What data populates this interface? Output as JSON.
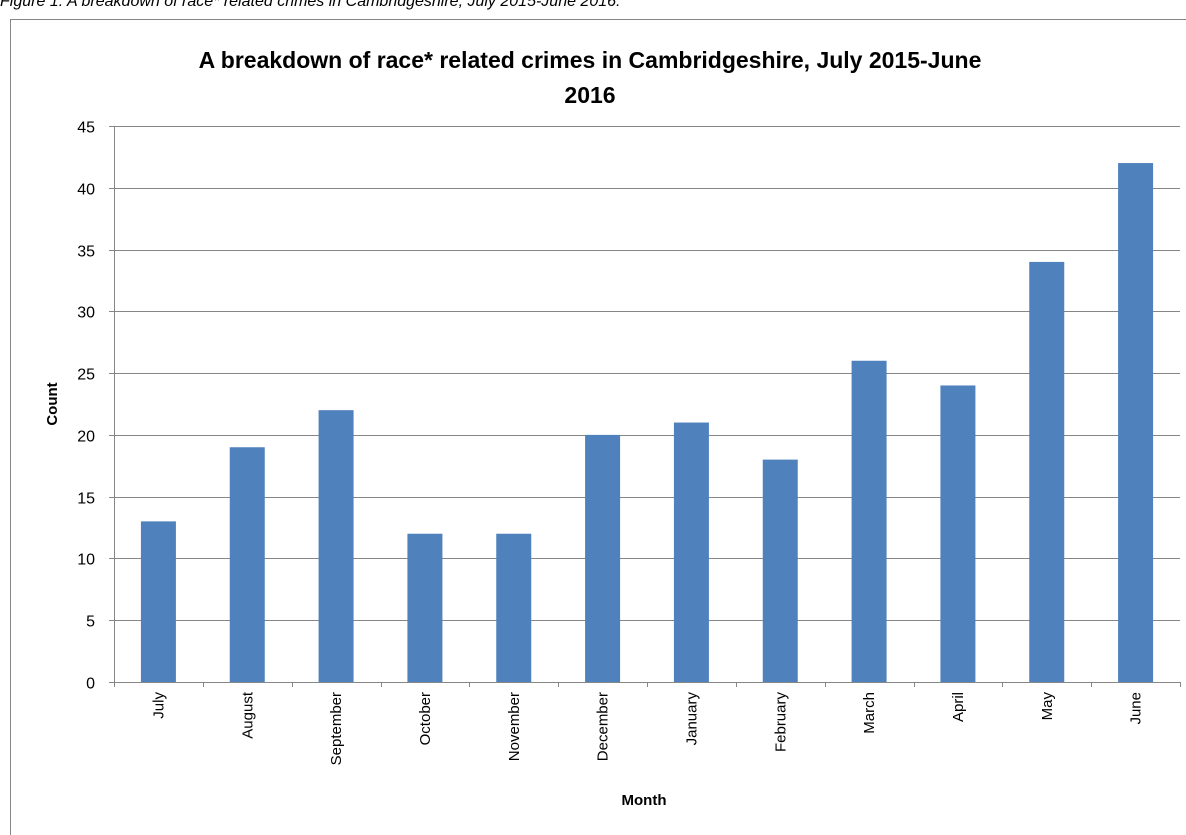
{
  "caption": "Figure 1: A breakdown of race* related crimes in Cambridgeshire, July 2015-June 2016.",
  "chart_data": {
    "type": "bar",
    "title_lines": [
      "A breakdown of race* related crimes in Cambridgeshire, July 2015-June",
      "2016"
    ],
    "xlabel": "Month",
    "ylabel": "Count",
    "categories": [
      "July",
      "August",
      "September",
      "October",
      "November",
      "December",
      "January",
      "February",
      "March",
      "April",
      "May",
      "June"
    ],
    "values": [
      13,
      19,
      22,
      12,
      12,
      20,
      21,
      18,
      26,
      24,
      34,
      42
    ],
    "ylim": [
      0,
      45
    ],
    "yticks": [
      0,
      5,
      10,
      15,
      20,
      25,
      30,
      35,
      40,
      45
    ],
    "grid": "horizontal",
    "legend": "none",
    "colors": {
      "bar": "#4F81BD",
      "grid": "#868686",
      "axis": "#868686"
    }
  }
}
